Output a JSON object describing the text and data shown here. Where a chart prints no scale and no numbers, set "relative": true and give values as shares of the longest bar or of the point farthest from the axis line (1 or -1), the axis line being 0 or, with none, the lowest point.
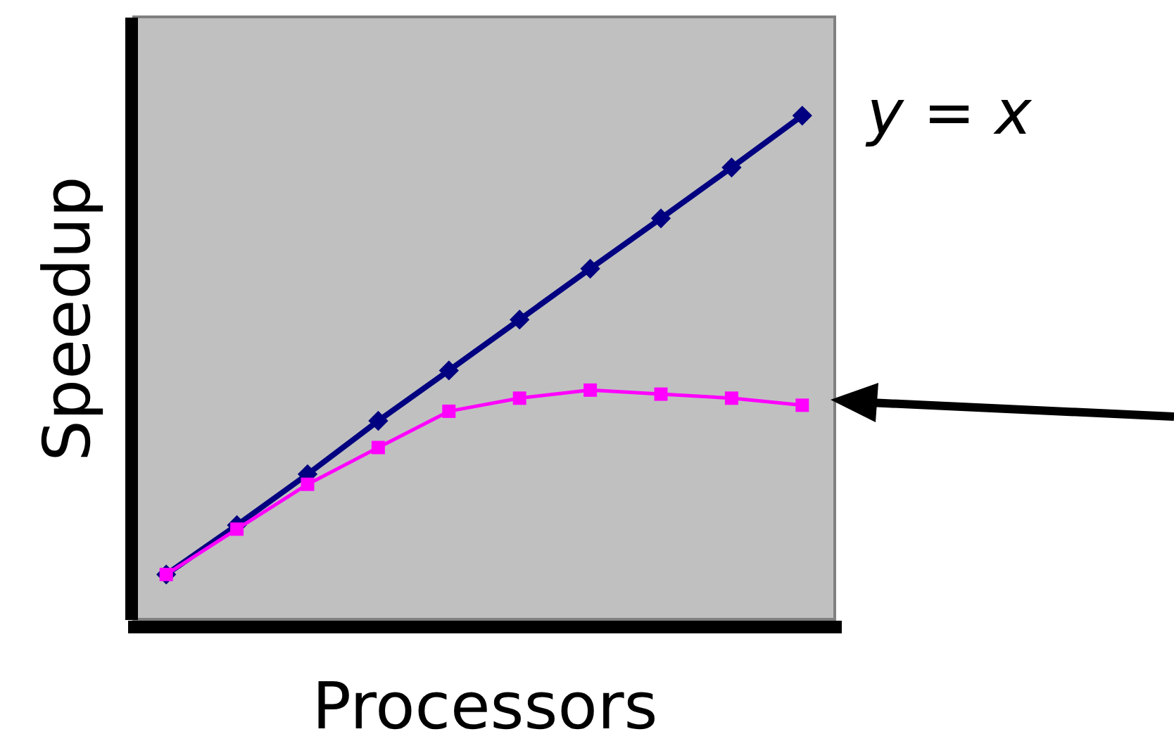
{
  "chart_data": {
    "type": "line",
    "xlabel": "Processors",
    "ylabel": "Speedup",
    "relative": true,
    "categories": [
      null,
      null,
      null,
      null,
      null,
      null,
      null,
      null,
      null,
      null
    ],
    "series": [
      {
        "name": "y = x",
        "color": "#000080",
        "marker": "diamond",
        "values": [
          0.089,
          0.187,
          0.288,
          0.394,
          0.494,
          0.595,
          0.696,
          0.796,
          0.897,
          1
        ]
      },
      {
        "color": "#ff00ff",
        "marker": "square",
        "values": [
          0.089,
          0.179,
          0.268,
          0.341,
          0.413,
          0.439,
          0.455,
          0.447,
          0.439,
          0.425
        ]
      }
    ]
  }
}
